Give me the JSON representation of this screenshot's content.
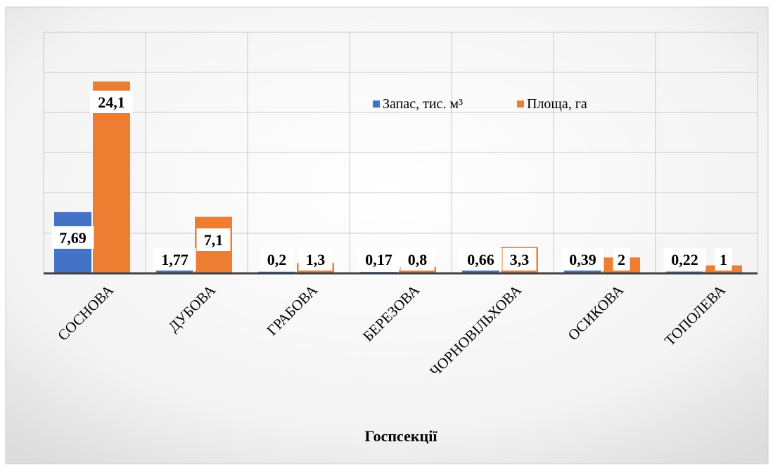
{
  "chart_data": {
    "type": "bar",
    "xlabel": "Госпсекції",
    "categories": [
      "СОСНОВА",
      "ДУБОВА",
      "ГРАБОВА",
      "БЕРЕЗОВА",
      "ЧОРНОВІЛЬХОВА",
      "ОСИКОВА",
      "ТОПОЛЕВА"
    ],
    "series": [
      {
        "name": "Запас, тис. м³",
        "color": "#4472C4",
        "values": [
          7.69,
          1.77,
          0.2,
          0.17,
          0.66,
          0.39,
          0.22
        ],
        "labels": [
          "7,69",
          "1,77",
          "0,2",
          "0,17",
          "0,66",
          "0,39",
          "0,22"
        ]
      },
      {
        "name": "Площа, га",
        "color": "#ED7D31",
        "values": [
          24.1,
          7.1,
          1.3,
          0.8,
          3.3,
          2,
          1
        ],
        "labels": [
          "24,1",
          "7,1",
          "1,3",
          "0,8",
          "3,3",
          "2",
          "1"
        ]
      }
    ],
    "ylim": [
      0,
      24.1
    ],
    "grid": true,
    "legend_position": "top-center",
    "y_tick_labels_shown": false
  }
}
